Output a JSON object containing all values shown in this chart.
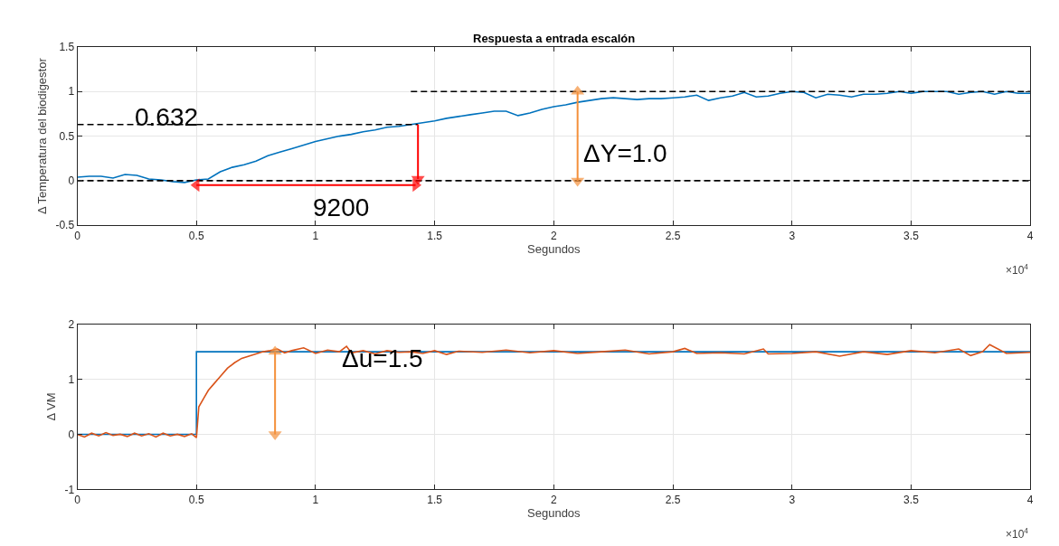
{
  "chart_data": [
    {
      "type": "line",
      "title": "Respuesta a entrada escalón",
      "xlabel": "Segundos",
      "ylabel": "Δ Temperatura del biodigestor",
      "xlim": [
        0,
        4
      ],
      "xticks": [
        0,
        0.5,
        1,
        1.5,
        2,
        2.5,
        3,
        3.5,
        4
      ],
      "ylim": [
        -0.5,
        1.5
      ],
      "yticks": [
        -0.5,
        0,
        0.5,
        1,
        1.5
      ],
      "grid": true,
      "series": [
        {
          "color": "#0072bd",
          "x": [
            0,
            0.05,
            0.1,
            0.15,
            0.2,
            0.25,
            0.3,
            0.35,
            0.4,
            0.45,
            0.5,
            0.55,
            0.6,
            0.65,
            0.7,
            0.75,
            0.8,
            0.85,
            0.9,
            0.95,
            1.0,
            1.05,
            1.1,
            1.15,
            1.2,
            1.25,
            1.3,
            1.35,
            1.4,
            1.45,
            1.5,
            1.55,
            1.6,
            1.65,
            1.7,
            1.75,
            1.8,
            1.85,
            1.9,
            1.95,
            2.0,
            2.05,
            2.1,
            2.15,
            2.2,
            2.25,
            2.3,
            2.35,
            2.4,
            2.45,
            2.5,
            2.55,
            2.6,
            2.65,
            2.7,
            2.75,
            2.8,
            2.85,
            2.9,
            2.95,
            3.0,
            3.05,
            3.1,
            3.15,
            3.2,
            3.25,
            3.3,
            3.35,
            3.4,
            3.45,
            3.5,
            3.55,
            3.6,
            3.65,
            3.7,
            3.75,
            3.8,
            3.85,
            3.9,
            3.95,
            4.0
          ],
          "values": [
            0.04,
            0.05,
            0.05,
            0.03,
            0.07,
            0.06,
            0.02,
            0.01,
            -0.01,
            -0.02,
            0.01,
            0.02,
            0.1,
            0.15,
            0.18,
            0.22,
            0.28,
            0.32,
            0.36,
            0.4,
            0.44,
            0.47,
            0.5,
            0.52,
            0.55,
            0.57,
            0.6,
            0.61,
            0.63,
            0.65,
            0.67,
            0.7,
            0.72,
            0.74,
            0.76,
            0.78,
            0.78,
            0.73,
            0.76,
            0.8,
            0.83,
            0.85,
            0.88,
            0.9,
            0.92,
            0.93,
            0.92,
            0.91,
            0.92,
            0.92,
            0.93,
            0.94,
            0.96,
            0.9,
            0.93,
            0.95,
            0.99,
            0.94,
            0.95,
            0.98,
            1.0,
            0.99,
            0.93,
            0.97,
            0.96,
            0.94,
            0.97,
            0.97,
            0.98,
            1.0,
            0.98,
            1.0,
            1.0,
            1.0,
            0.97,
            0.99,
            1.0,
            0.97,
            1.0,
            0.98,
            0.98
          ]
        },
        {
          "type": "line",
          "line_style": "dashed",
          "color": "#000000",
          "x": [
            0,
            1.43
          ],
          "values": [
            0.63,
            0.63
          ]
        },
        {
          "type": "line",
          "line_style": "dashed",
          "color": "#000000",
          "x": [
            1.4,
            4
          ],
          "values": [
            1,
            1
          ]
        },
        {
          "type": "line",
          "line_style": "dashed",
          "color": "#000000",
          "x": [
            0,
            4
          ],
          "values": [
            0,
            0
          ]
        },
        {
          "type": "line",
          "marker": [
            "triangle",
            "triangle"
          ],
          "color": "#ff0000",
          "x": [
            0.5,
            1.42
          ],
          "values": [
            -0.05,
            -0.05
          ]
        },
        {
          "type": "line",
          "marker": [
            "none",
            "triangle"
          ],
          "color": "#ff0000",
          "x": [
            1.43,
            1.43
          ],
          "values": [
            0.63,
            0.02
          ]
        },
        {
          "type": "line",
          "marker": [
            "triangle",
            "triangle"
          ],
          "color": "#f4903a",
          "x": [
            2.1,
            2.1
          ],
          "values": [
            0,
            1
          ]
        }
      ],
      "annotations": [
        "0.632",
        "9200",
        "ΔY=1.0",
        "×10$^{4}$"
      ]
    },
    {
      "type": "line",
      "xlabel": "Segundos",
      "ylabel": "Δ VM",
      "xlim": [
        0,
        4
      ],
      "xticks": [
        0,
        0.5,
        1,
        1.5,
        2,
        2.5,
        3,
        3.5,
        4
      ],
      "ylim": [
        -1,
        2
      ],
      "yticks": [
        -1,
        0,
        1,
        2
      ],
      "grid": true,
      "series": [
        {
          "color": "#0072bd",
          "x": [
            0,
            0.5,
            0.5,
            4
          ],
          "values": [
            0,
            0,
            1.5,
            1.5
          ]
        },
        {
          "color": "#d95319",
          "x": [
            0,
            0.03,
            0.06,
            0.09,
            0.12,
            0.15,
            0.18,
            0.21,
            0.24,
            0.27,
            0.3,
            0.33,
            0.36,
            0.39,
            0.42,
            0.45,
            0.48,
            0.5,
            0.51,
            0.53,
            0.55,
            0.57,
            0.6,
            0.63,
            0.66,
            0.69,
            0.72,
            0.75,
            0.78,
            0.81,
            0.84,
            0.87,
            0.9,
            0.95,
            1.0,
            1.05,
            1.1,
            1.13,
            1.15,
            1.2,
            1.25,
            1.3,
            1.35,
            1.4,
            1.45,
            1.5,
            1.55,
            1.6,
            1.7,
            1.8,
            1.9,
            2.0,
            2.1,
            2.2,
            2.3,
            2.4,
            2.5,
            2.55,
            2.6,
            2.7,
            2.8,
            2.88,
            2.9,
            3.0,
            3.1,
            3.2,
            3.3,
            3.4,
            3.5,
            3.6,
            3.7,
            3.75,
            3.8,
            3.83,
            3.9,
            4.0
          ],
          "values": [
            0,
            -0.05,
            0.02,
            -0.03,
            0.03,
            -0.02,
            0,
            -0.04,
            0.02,
            -0.03,
            0.01,
            -0.05,
            0.02,
            -0.03,
            0,
            -0.04,
            0.01,
            -0.06,
            0.5,
            0.65,
            0.8,
            0.9,
            1.05,
            1.2,
            1.3,
            1.38,
            1.42,
            1.46,
            1.5,
            1.52,
            1.55,
            1.48,
            1.52,
            1.57,
            1.47,
            1.53,
            1.5,
            1.6,
            1.48,
            1.52,
            1.46,
            1.52,
            1.49,
            1.5,
            1.47,
            1.52,
            1.45,
            1.51,
            1.49,
            1.53,
            1.48,
            1.52,
            1.47,
            1.5,
            1.53,
            1.46,
            1.5,
            1.56,
            1.47,
            1.48,
            1.46,
            1.55,
            1.46,
            1.47,
            1.5,
            1.42,
            1.5,
            1.45,
            1.52,
            1.48,
            1.55,
            1.43,
            1.5,
            1.63,
            1.47,
            1.49
          ]
        },
        {
          "type": "line",
          "marker": [
            "triangle",
            "triangle"
          ],
          "color": "#f4903a",
          "x": [
            0.83,
            0.83
          ],
          "values": [
            0,
            1.5
          ]
        }
      ],
      "annotations": [
        "Δu=1.5",
        "×10$^{4}$"
      ]
    }
  ]
}
